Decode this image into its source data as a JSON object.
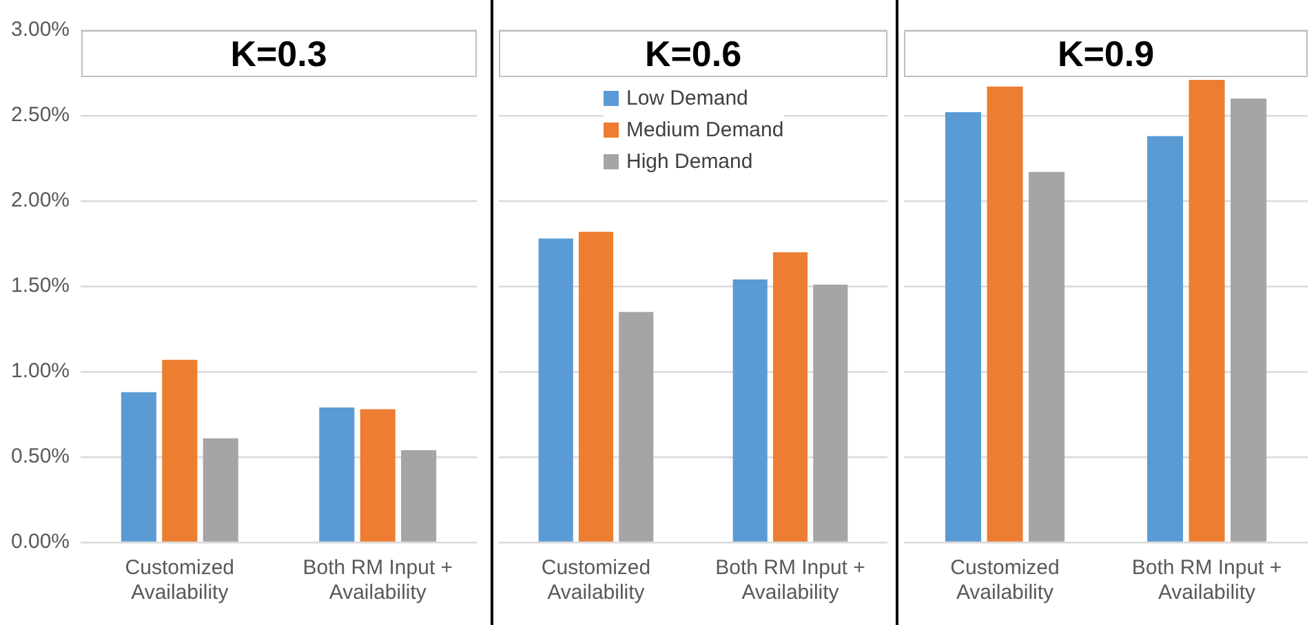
{
  "chart_data": [
    {
      "type": "bar",
      "title": "K=0.3",
      "categories": [
        "Customized Availability",
        "Both RM Input + Availability"
      ],
      "series": [
        {
          "color": "#5b9bd5",
          "values": [
            0.88,
            0.79
          ]
        },
        {
          "color": "#ed7d31",
          "values": [
            1.07,
            0.78
          ]
        },
        {
          "color": "#a5a5a5",
          "values": [
            0.61,
            0.54
          ]
        }
      ],
      "ylim": [
        0,
        3
      ],
      "yticks": [
        {
          "value": 0,
          "label": "0.00%"
        },
        {
          "value": 0.5,
          "label": "0.50%"
        },
        {
          "value": 1,
          "label": "1.00%"
        },
        {
          "value": 1.5,
          "label": "1.50%"
        },
        {
          "value": 2,
          "label": "2.00%"
        },
        {
          "value": 2.5,
          "label": "2.50%"
        },
        {
          "value": 3,
          "label": "3.00%"
        }
      ],
      "grid": "y"
    },
    {
      "type": "bar",
      "title": "K=0.6",
      "categories": [
        "Customized Availability",
        "Both RM Input + Availability"
      ],
      "series": [
        {
          "name": "Low Demand",
          "color": "#5b9bd5",
          "values": [
            1.78,
            1.54
          ]
        },
        {
          "name": "Medium Demand",
          "color": "#ed7d31",
          "values": [
            1.82,
            1.7
          ]
        },
        {
          "name": "High Demand",
          "color": "#a5a5a5",
          "values": [
            1.35,
            1.51
          ]
        }
      ],
      "ylim": [
        0,
        3
      ],
      "yticks": [
        0,
        0.5,
        1,
        1.5,
        2,
        2.5,
        3
      ],
      "grid": "y",
      "legend": "top",
      "tick_labels": "x"
    },
    {
      "type": "bar",
      "title": "K=0.9",
      "categories": [
        "Customized Availability",
        "Both RM Input + Availability"
      ],
      "series": [
        {
          "color": "#5b9bd5",
          "values": [
            2.52,
            2.38
          ]
        },
        {
          "color": "#ed7d31",
          "values": [
            2.67,
            2.71
          ]
        },
        {
          "color": "#a5a5a5",
          "values": [
            2.17,
            2.6
          ]
        }
      ],
      "ylim": [
        0,
        3
      ],
      "yticks": [
        0,
        0.5,
        1,
        1.5,
        2,
        2.5,
        3
      ],
      "grid": "y",
      "tick_labels": "x"
    }
  ]
}
